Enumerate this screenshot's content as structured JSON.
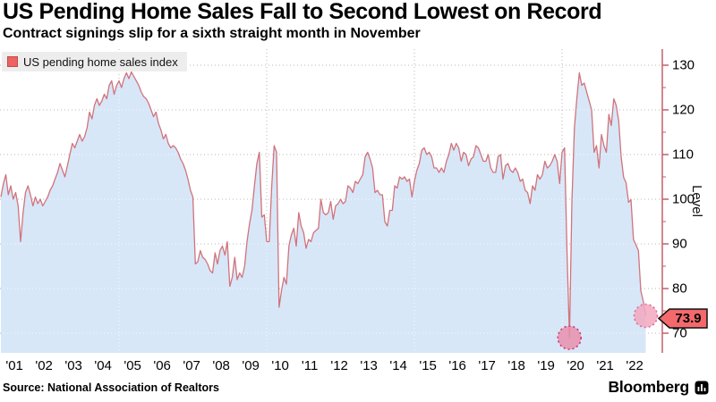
{
  "header": {
    "title": "US Pending Home Sales Fall to Second Lowest on Record",
    "subtitle": "Contract signings slip for a sixth straight month in November"
  },
  "legend": {
    "label": "US pending home sales index"
  },
  "axis": {
    "ylabel": "Level"
  },
  "footer": {
    "source": "Source: National Association of Realtors",
    "brand": "Bloomberg"
  },
  "chart_data": {
    "type": "area",
    "title": "US Pending Home Sales Fall to Second Lowest on Record",
    "series_name": "US pending home sales index",
    "frequency": "monthly",
    "x_start": "2001-01",
    "x_end": "2022-11",
    "ylabel": "Level",
    "ylim": [
      65.5,
      133.5
    ],
    "yticks": [
      70,
      80,
      90,
      100,
      110,
      120,
      130
    ],
    "yticks_minor": [
      75,
      85,
      95,
      105,
      115,
      125
    ],
    "xtick_labels": [
      "'01",
      "'02",
      "'03",
      "'04",
      "'05",
      "'06",
      "'07",
      "'08",
      "'09",
      "'10",
      "'11",
      "'12",
      "'13",
      "'14",
      "'15",
      "'16",
      "'17",
      "'18",
      "'19",
      "'20",
      "'21",
      "'22"
    ],
    "vertical_gridlines": [
      "2005-01",
      "2010-01",
      "2015-01",
      "2020-01"
    ],
    "grid": true,
    "legend_position": "top-left",
    "end_label": "73.9",
    "end_value": 73.9,
    "markers": [
      {
        "date": "2020-04",
        "value": 69.0,
        "fill": "#e78fad",
        "stroke": "#d3356f"
      },
      {
        "date": "2022-11",
        "value": 73.9,
        "fill": "#f2a8c0",
        "stroke": "#de6b9a"
      }
    ],
    "colors": {
      "line": "#d1737c",
      "fill": "#d7e7f8",
      "axis": "#c2606b",
      "grid": "#b4b7ba",
      "label_bg": "#f4696b"
    },
    "values": [
      100.5,
      103.5,
      105.5,
      101.0,
      103.0,
      100.0,
      101.5,
      98.5,
      90.5,
      97.0,
      101.5,
      103.0,
      101.0,
      98.5,
      100.5,
      99.0,
      100.0,
      98.5,
      99.5,
      100.5,
      102.0,
      103.0,
      104.5,
      106.0,
      108.0,
      106.5,
      105.0,
      107.5,
      110.0,
      112.5,
      111.5,
      113.0,
      114.5,
      113.0,
      114.0,
      116.0,
      119.5,
      118.0,
      121.0,
      122.5,
      121.0,
      122.0,
      123.5,
      122.5,
      125.5,
      126.5,
      123.5,
      125.5,
      126.5,
      125.0,
      127.0,
      128.3,
      127.0,
      128.5,
      127.5,
      126.5,
      125.5,
      124.0,
      123.0,
      122.5,
      121.5,
      120.0,
      118.5,
      119.5,
      117.0,
      115.5,
      113.5,
      114.5,
      112.5,
      111.5,
      112.0,
      111.5,
      110.5,
      109.0,
      108.0,
      106.5,
      104.5,
      102.0,
      100.5,
      85.5,
      86.0,
      88.5,
      87.0,
      86.5,
      85.5,
      84.0,
      83.5,
      88.0,
      85.5,
      88.5,
      89.5,
      87.5,
      90.5,
      80.5,
      82.5,
      87.0,
      82.0,
      83.5,
      82.5,
      85.0,
      90.5,
      94.5,
      97.5,
      103.0,
      108.0,
      110.5,
      96.0,
      96.5,
      90.5,
      90.5,
      102.5,
      112.0,
      110.5,
      75.8,
      79.5,
      82.5,
      81.0,
      89.5,
      92.0,
      93.5,
      89.5,
      97.0,
      94.0,
      92.5,
      89.0,
      91.0,
      90.5,
      92.5,
      93.0,
      93.5,
      100.0,
      97.0,
      96.5,
      97.0,
      99.5,
      95.5,
      98.5,
      99.0,
      100.0,
      99.0,
      99.5,
      103.0,
      102.5,
      101.5,
      104.0,
      103.5,
      104.5,
      105.5,
      109.5,
      110.5,
      109.0,
      107.0,
      101.5,
      102.0,
      101.0,
      101.0,
      95.0,
      94.0,
      97.5,
      97.5,
      103.0,
      102.5,
      105.0,
      104.5,
      105.0,
      104.0,
      104.5,
      100.5,
      104.0,
      106.5,
      108.0,
      111.0,
      111.5,
      110.0,
      110.5,
      109.5,
      107.0,
      107.0,
      106.0,
      107.0,
      106.0,
      108.5,
      110.0,
      112.5,
      111.0,
      112.5,
      111.5,
      108.5,
      110.5,
      110.0,
      107.5,
      109.0,
      109.5,
      112.0,
      111.5,
      110.0,
      108.5,
      108.5,
      110.0,
      107.0,
      106.0,
      106.0,
      109.5,
      110.0,
      104.5,
      107.5,
      108.0,
      106.5,
      106.0,
      107.0,
      106.0,
      104.0,
      104.5,
      102.0,
      101.5,
      99.0,
      103.0,
      102.0,
      105.5,
      104.5,
      105.5,
      108.5,
      107.0,
      107.5,
      108.5,
      110.0,
      108.5,
      103.5,
      110.5,
      111.5,
      88.5,
      69.0,
      99.5,
      116.0,
      122.5,
      128.3,
      125.5,
      126.0,
      124.0,
      122.0,
      120.0,
      110.5,
      112.0,
      107.0,
      114.5,
      112.0,
      110.5,
      119.0,
      116.5,
      122.5,
      121.0,
      117.5,
      109.5,
      104.9,
      103.7,
      99.3,
      99.9,
      91.0,
      89.8,
      88.5,
      79.5,
      77.1,
      73.9
    ]
  }
}
